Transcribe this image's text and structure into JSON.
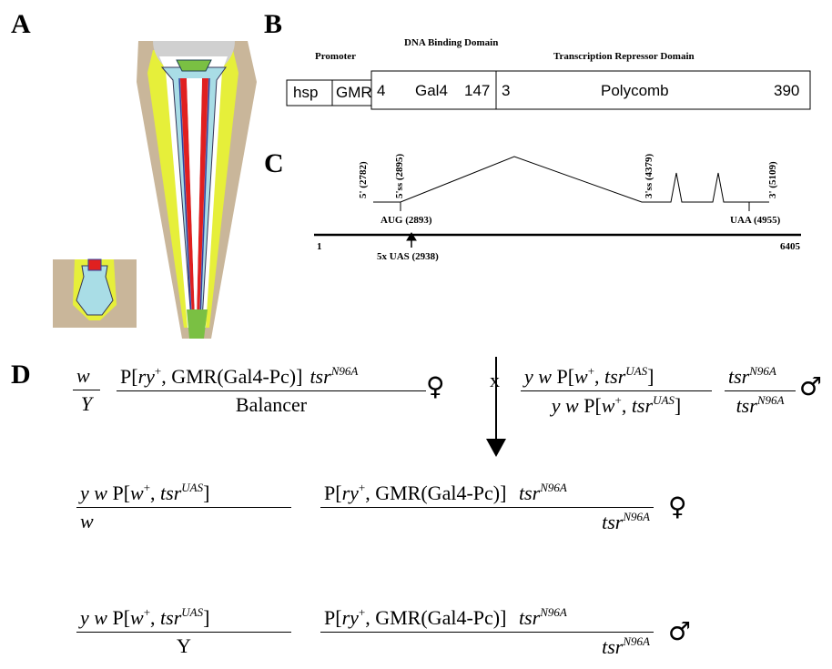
{
  "panel_a": {
    "label": "A"
  },
  "panel_b": {
    "label": "B",
    "headers": {
      "promoter": "Promoter",
      "dna_binding": "DNA Binding Domain",
      "repressor": "Transcription Repressor Domain"
    },
    "boxes": {
      "hsp": "hsp",
      "gmr": "GMR",
      "gal4_start": "4",
      "gal4": "Gal4",
      "gal4_end": "147",
      "pc_start": "3",
      "polycomb": "Polycomb",
      "pc_end": "390"
    }
  },
  "panel_c": {
    "label": "C",
    "sites": {
      "five_prime": "5' (2782)",
      "five_ss": "5'ss (2895)",
      "three_ss": "3'ss (4379)",
      "three_prime": "3' (5109)"
    },
    "aug": "AUG (2893)",
    "uaa": "UAA (4955)",
    "start": "1",
    "end": "6405",
    "uas": "5x UAS (2938)"
  },
  "panel_d": {
    "label": "D",
    "cross": "x",
    "parent_female": {
      "x_num": "w",
      "x_den": "Y",
      "chr2_num": [
        "P[",
        "ry",
        "+",
        ", GMR(Gal4-Pc)]",
        "tsr",
        "N96A"
      ],
      "chr2_den": "Balancer",
      "sex": "♀"
    },
    "parent_male": {
      "x_num": [
        "y w",
        " P[",
        "w",
        "+",
        ", ",
        "tsr",
        "UAS",
        "]"
      ],
      "x_den": [
        "y w",
        " P[",
        "w",
        "+",
        ", ",
        "tsr",
        "UAS",
        "]"
      ],
      "chr2_num": [
        "tsr",
        "N96A"
      ],
      "chr2_den": [
        "tsr",
        "N96A"
      ],
      "sex": "♂"
    },
    "offspring": [
      {
        "x_num": [
          "y w",
          " P[",
          "w",
          "+",
          ", ",
          "tsr",
          "UAS",
          "]"
        ],
        "x_den": "w",
        "chr2_num": [
          "P[",
          "ry",
          "+",
          ", GMR(Gal4-Pc)] ",
          "tsr",
          "N96A"
        ],
        "chr2_den": [
          "tsr",
          "N96A"
        ],
        "sex": "♀"
      },
      {
        "x_num": [
          "y w",
          " P[",
          "w",
          "+",
          ", ",
          "tsr",
          "UAS",
          "]"
        ],
        "x_den": "Y",
        "chr2_num": [
          "P[",
          "ry",
          "+",
          ", GMR(Gal4-Pc)] ",
          "tsr",
          "N96A"
        ],
        "chr2_den": [
          "tsr",
          "N96A"
        ],
        "sex": "♂"
      }
    ]
  }
}
